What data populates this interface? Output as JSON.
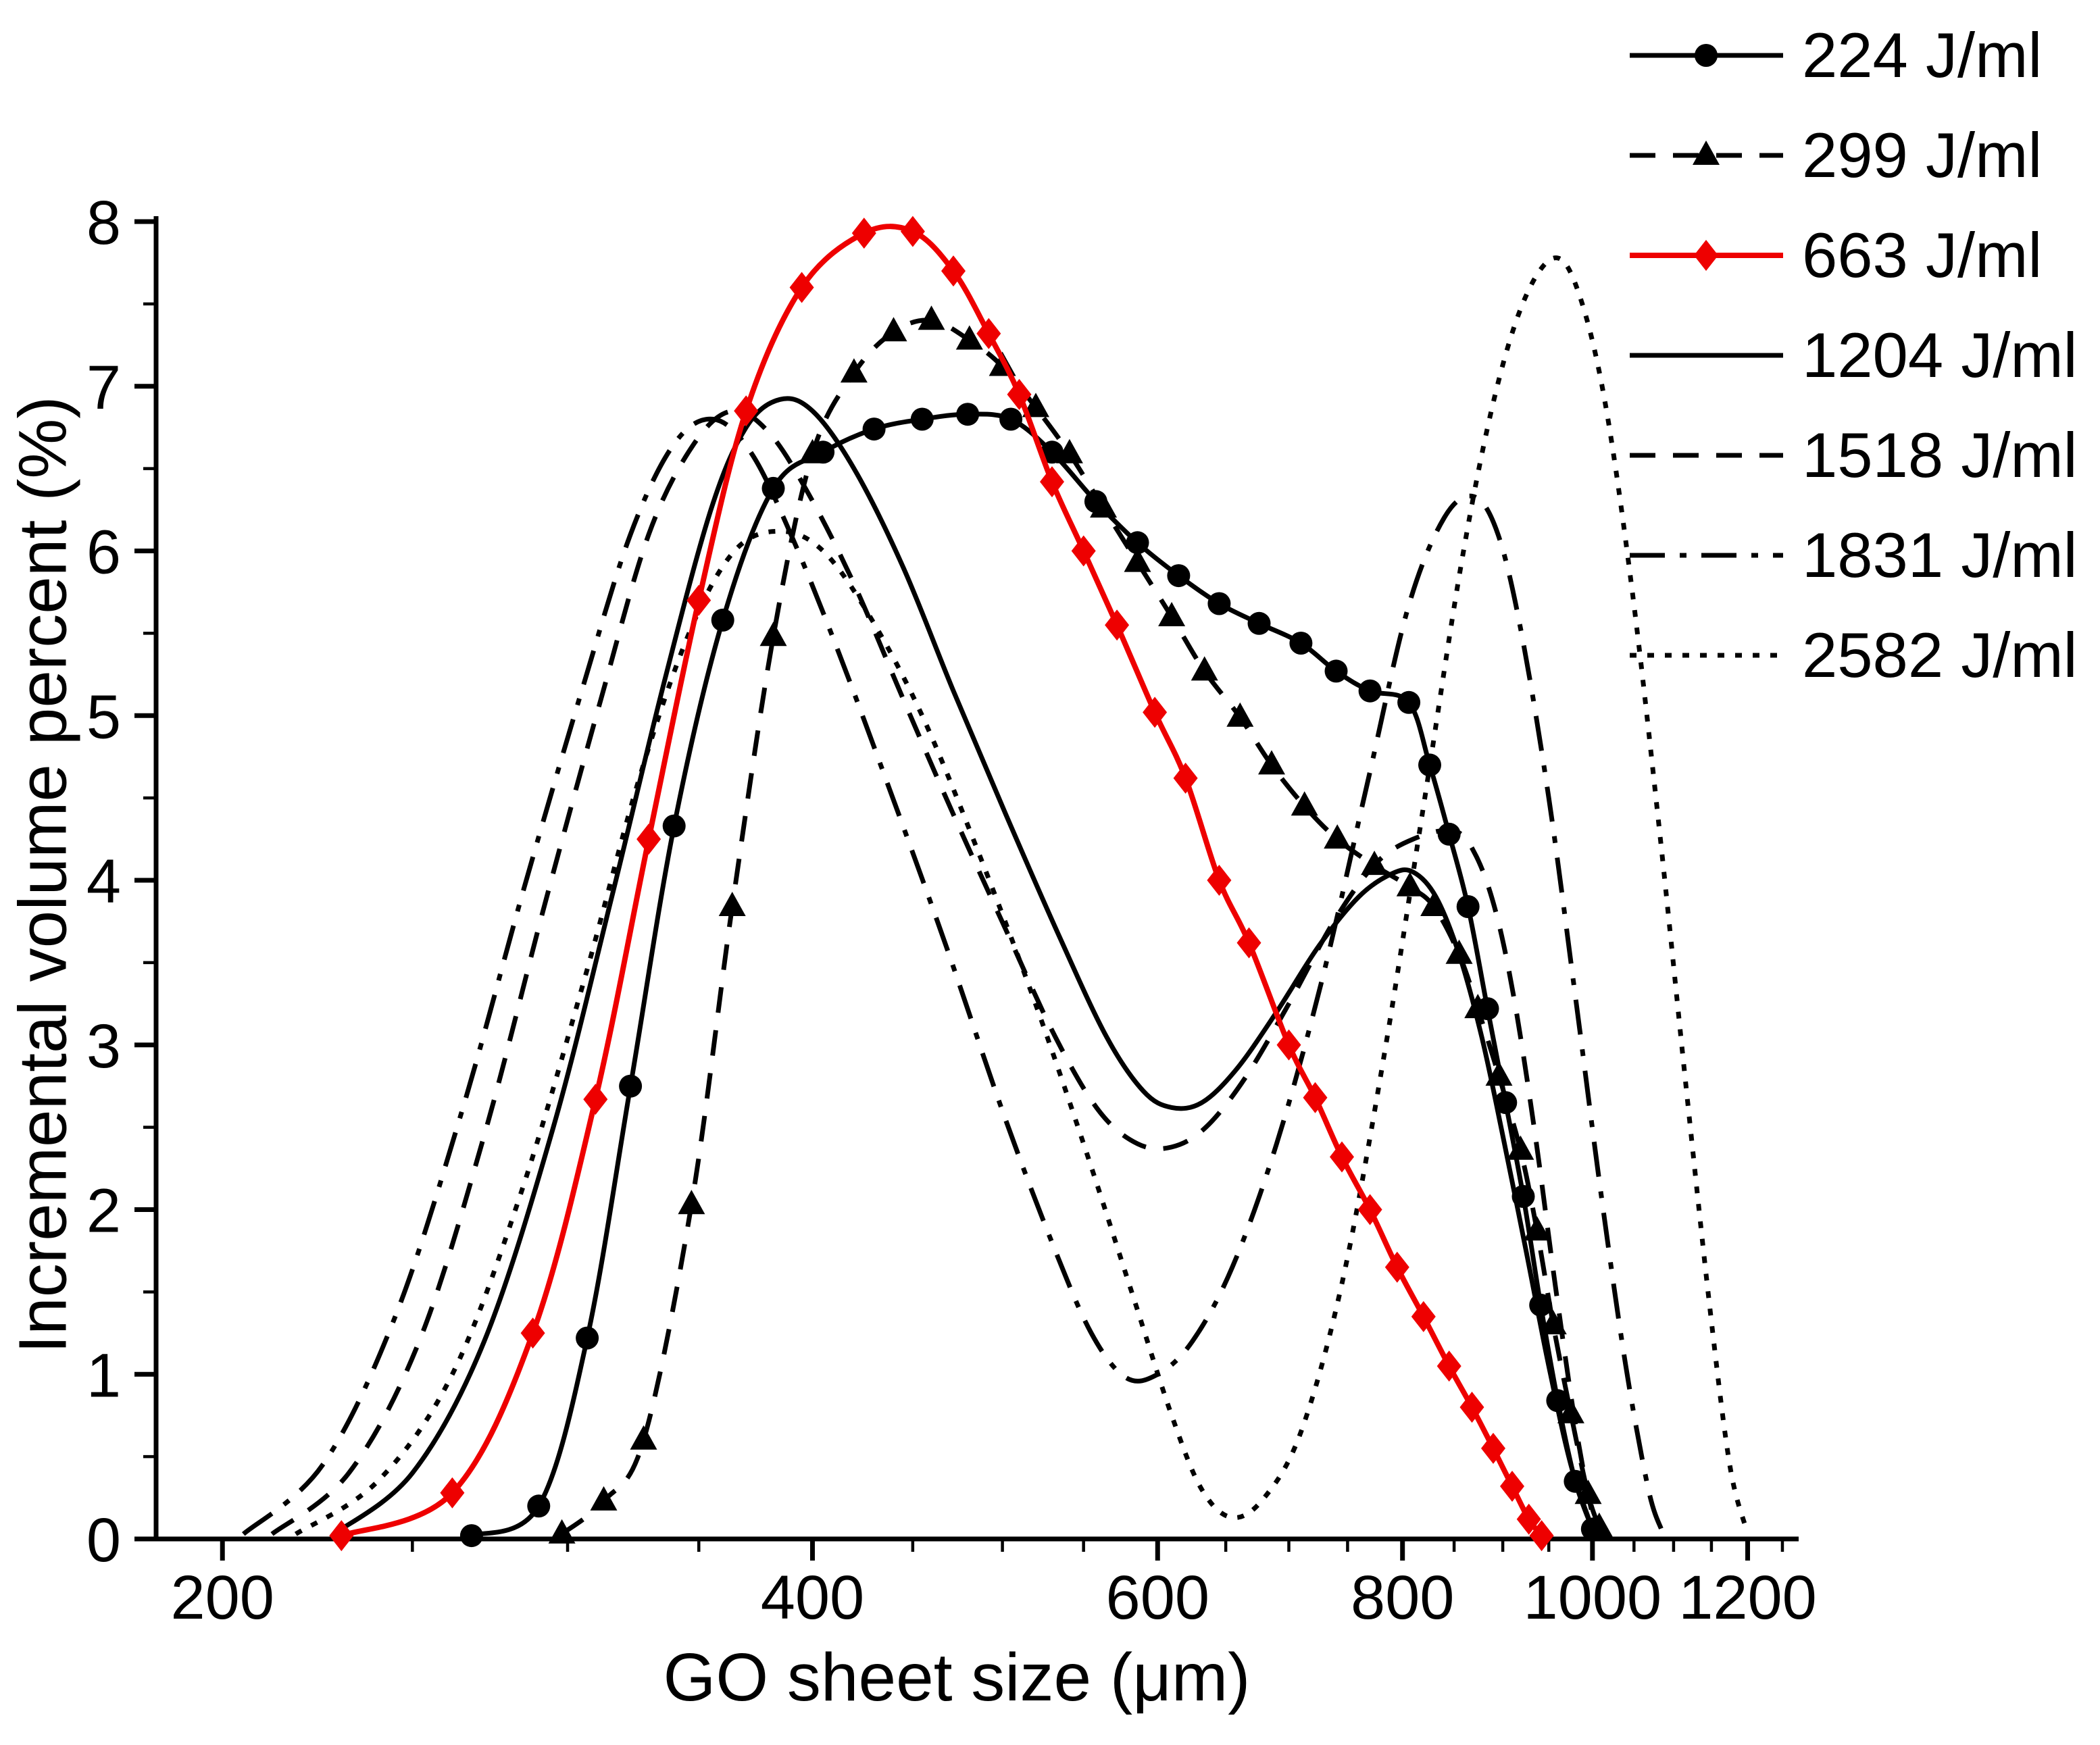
{
  "figure": {
    "background": "#ffffff",
    "accent_red": "#ee0000",
    "axis_color": "#000000"
  },
  "chart_data": {
    "type": "line",
    "title": "",
    "xlabel": "GO sheet size (μm)",
    "ylabel": "Incremental volume percent (%)",
    "x_scale": "log",
    "xlim": [
      185,
      1260
    ],
    "ylim": [
      0,
      8
    ],
    "x_ticks": [
      200,
      400,
      600,
      800,
      1000,
      1200
    ],
    "x_minor_ticks": [
      250,
      300,
      350,
      450,
      500,
      550,
      650,
      700,
      750,
      850,
      900,
      950,
      1050,
      1100,
      1150,
      1250
    ],
    "y_ticks": [
      0,
      1,
      2,
      3,
      4,
      5,
      6,
      7,
      8
    ],
    "y_minor_step": 0.5,
    "grid": false,
    "legend_position": "top-right",
    "series": [
      {
        "label": "224 J/ml",
        "color": "#000000",
        "line_style": "solid",
        "marker": "circle",
        "points": [
          [
            268,
            0.02
          ],
          [
            290,
            0.2
          ],
          [
            307,
            1.22
          ],
          [
            323,
            2.75
          ],
          [
            340,
            4.33
          ],
          [
            360,
            5.58
          ],
          [
            382,
            6.38
          ],
          [
            405,
            6.6
          ],
          [
            430,
            6.74
          ],
          [
            455,
            6.8
          ],
          [
            480,
            6.83
          ],
          [
            505,
            6.8
          ],
          [
            530,
            6.6
          ],
          [
            558,
            6.3
          ],
          [
            586,
            6.05
          ],
          [
            615,
            5.85
          ],
          [
            645,
            5.68
          ],
          [
            676,
            5.56
          ],
          [
            710,
            5.44
          ],
          [
            740,
            5.27
          ],
          [
            770,
            5.15
          ],
          [
            806,
            5.08
          ],
          [
            826,
            4.7
          ],
          [
            845,
            4.28
          ],
          [
            864,
            3.84
          ],
          [
            884,
            3.22
          ],
          [
            903,
            2.65
          ],
          [
            922,
            2.08
          ],
          [
            941,
            1.42
          ],
          [
            960,
            0.84
          ],
          [
            980,
            0.35
          ],
          [
            1000,
            0.06
          ]
        ]
      },
      {
        "label": "299 J/ml",
        "color": "#000000",
        "line_style": "dashed",
        "marker": "triangle",
        "points": [
          [
            298,
            0.03
          ],
          [
            313,
            0.23
          ],
          [
            328,
            0.6
          ],
          [
            347,
            2.03
          ],
          [
            364,
            3.84
          ],
          [
            382,
            5.48
          ],
          [
            400,
            6.59
          ],
          [
            420,
            7.08
          ],
          [
            440,
            7.33
          ],
          [
            460,
            7.4
          ],
          [
            481,
            7.28
          ],
          [
            500,
            7.12
          ],
          [
            520,
            6.87
          ],
          [
            541,
            6.59
          ],
          [
            563,
            6.26
          ],
          [
            586,
            5.93
          ],
          [
            610,
            5.6
          ],
          [
            634,
            5.27
          ],
          [
            661,
            4.99
          ],
          [
            686,
            4.7
          ],
          [
            713,
            4.45
          ],
          [
            741,
            4.25
          ],
          [
            774,
            4.09
          ],
          [
            807,
            3.96
          ],
          [
            830,
            3.84
          ],
          [
            855,
            3.55
          ],
          [
            874,
            3.22
          ],
          [
            896,
            2.81
          ],
          [
            919,
            2.36
          ],
          [
            937,
            1.87
          ],
          [
            955,
            1.3
          ],
          [
            975,
            0.76
          ],
          [
            995,
            0.27
          ],
          [
            1008,
            0.07
          ]
        ]
      },
      {
        "label": "663 J/ml",
        "color": "#ee0000",
        "line_style": "solid",
        "marker": "diamond",
        "points": [
          [
            230,
            0.02
          ],
          [
            262,
            0.28
          ],
          [
            288,
            1.25
          ],
          [
            310,
            2.67
          ],
          [
            330,
            4.25
          ],
          [
            350,
            5.7
          ],
          [
            370,
            6.85
          ],
          [
            395,
            7.6
          ],
          [
            425,
            7.93
          ],
          [
            450,
            7.94
          ],
          [
            472,
            7.7
          ],
          [
            492,
            7.32
          ],
          [
            510,
            6.95
          ],
          [
            530,
            6.42
          ],
          [
            550,
            6.0
          ],
          [
            572,
            5.55
          ],
          [
            598,
            5.02
          ],
          [
            620,
            4.62
          ],
          [
            645,
            4.0
          ],
          [
            668,
            3.62
          ],
          [
            700,
            3.0
          ],
          [
            722,
            2.68
          ],
          [
            745,
            2.32
          ],
          [
            770,
            2.0
          ],
          [
            795,
            1.65
          ],
          [
            820,
            1.35
          ],
          [
            845,
            1.05
          ],
          [
            868,
            0.8
          ],
          [
            890,
            0.55
          ],
          [
            910,
            0.32
          ],
          [
            928,
            0.12
          ],
          [
            942,
            0.02
          ]
        ]
      },
      {
        "label": "1204 J/ml",
        "color": "#000000",
        "line_style": "solid",
        "marker": "none",
        "points": [
          [
            228,
            0.03
          ],
          [
            250,
            0.4
          ],
          [
            272,
            1.2
          ],
          [
            295,
            2.5
          ],
          [
            316,
            3.9
          ],
          [
            336,
            5.2
          ],
          [
            355,
            6.25
          ],
          [
            370,
            6.75
          ],
          [
            385,
            6.92
          ],
          [
            400,
            6.85
          ],
          [
            420,
            6.5
          ],
          [
            445,
            5.9
          ],
          [
            472,
            5.15
          ],
          [
            502,
            4.4
          ],
          [
            535,
            3.65
          ],
          [
            565,
            3.05
          ],
          [
            590,
            2.72
          ],
          [
            610,
            2.62
          ],
          [
            632,
            2.65
          ],
          [
            658,
            2.85
          ],
          [
            690,
            3.2
          ],
          [
            725,
            3.6
          ],
          [
            760,
            3.9
          ],
          [
            790,
            4.04
          ],
          [
            810,
            4.05
          ],
          [
            832,
            3.9
          ],
          [
            855,
            3.55
          ],
          [
            878,
            3.05
          ],
          [
            900,
            2.45
          ],
          [
            925,
            1.75
          ],
          [
            950,
            1.05
          ],
          [
            975,
            0.45
          ],
          [
            1000,
            0.06
          ]
        ]
      },
      {
        "label": "1518 J/ml",
        "color": "#000000",
        "line_style": "dashed",
        "marker": "none",
        "points": [
          [
            212,
            0.03
          ],
          [
            232,
            0.4
          ],
          [
            252,
            1.2
          ],
          [
            272,
            2.45
          ],
          [
            292,
            3.85
          ],
          [
            312,
            5.1
          ],
          [
            330,
            6.1
          ],
          [
            348,
            6.65
          ],
          [
            364,
            6.85
          ],
          [
            380,
            6.72
          ],
          [
            398,
            6.35
          ],
          [
            420,
            5.8
          ],
          [
            445,
            5.1
          ],
          [
            472,
            4.4
          ],
          [
            502,
            3.7
          ],
          [
            532,
            3.05
          ],
          [
            560,
            2.6
          ],
          [
            586,
            2.4
          ],
          [
            610,
            2.38
          ],
          [
            635,
            2.5
          ],
          [
            665,
            2.8
          ],
          [
            700,
            3.25
          ],
          [
            738,
            3.75
          ],
          [
            775,
            4.1
          ],
          [
            810,
            4.25
          ],
          [
            850,
            4.3
          ],
          [
            872,
            4.15
          ],
          [
            893,
            3.8
          ],
          [
            913,
            3.25
          ],
          [
            935,
            2.45
          ],
          [
            957,
            1.55
          ],
          [
            980,
            0.7
          ],
          [
            1000,
            0.15
          ],
          [
            1010,
            0.04
          ]
        ]
      },
      {
        "label": "1831 J/ml",
        "color": "#000000",
        "line_style": "dashdot",
        "marker": "none",
        "points": [
          [
            205,
            0.03
          ],
          [
            225,
            0.45
          ],
          [
            245,
            1.35
          ],
          [
            265,
            2.6
          ],
          [
            285,
            3.95
          ],
          [
            305,
            5.15
          ],
          [
            323,
            6.1
          ],
          [
            340,
            6.65
          ],
          [
            356,
            6.8
          ],
          [
            372,
            6.6
          ],
          [
            390,
            6.1
          ],
          [
            412,
            5.4
          ],
          [
            438,
            4.55
          ],
          [
            468,
            3.6
          ],
          [
            500,
            2.6
          ],
          [
            530,
            1.8
          ],
          [
            555,
            1.25
          ],
          [
            578,
            0.98
          ],
          [
            600,
            1.0
          ],
          [
            625,
            1.2
          ],
          [
            655,
            1.65
          ],
          [
            690,
            2.4
          ],
          [
            728,
            3.4
          ],
          [
            768,
            4.6
          ],
          [
            805,
            5.65
          ],
          [
            840,
            6.2
          ],
          [
            870,
            6.33
          ],
          [
            895,
            6.1
          ],
          [
            920,
            5.5
          ],
          [
            950,
            4.5
          ],
          [
            980,
            3.3
          ],
          [
            1010,
            2.1
          ],
          [
            1040,
            1.05
          ],
          [
            1068,
            0.3
          ],
          [
            1085,
            0.05
          ]
        ]
      },
      {
        "label": "2582 J/ml",
        "color": "#000000",
        "line_style": "dotted",
        "marker": "none",
        "points": [
          [
            218,
            0.03
          ],
          [
            240,
            0.35
          ],
          [
            262,
            1.0
          ],
          [
            284,
            2.1
          ],
          [
            306,
            3.4
          ],
          [
            326,
            4.6
          ],
          [
            346,
            5.5
          ],
          [
            365,
            6.0
          ],
          [
            385,
            6.12
          ],
          [
            405,
            6.0
          ],
          [
            428,
            5.6
          ],
          [
            455,
            5.0
          ],
          [
            485,
            4.2
          ],
          [
            518,
            3.3
          ],
          [
            550,
            2.4
          ],
          [
            582,
            1.5
          ],
          [
            610,
            0.75
          ],
          [
            632,
            0.3
          ],
          [
            655,
            0.13
          ],
          [
            680,
            0.25
          ],
          [
            710,
            0.65
          ],
          [
            745,
            1.55
          ],
          [
            782,
            2.9
          ],
          [
            820,
            4.45
          ],
          [
            858,
            5.95
          ],
          [
            892,
            6.95
          ],
          [
            925,
            7.55
          ],
          [
            958,
            7.78
          ],
          [
            985,
            7.55
          ],
          [
            1015,
            6.9
          ],
          [
            1048,
            5.75
          ],
          [
            1082,
            4.3
          ],
          [
            1115,
            2.8
          ],
          [
            1148,
            1.4
          ],
          [
            1175,
            0.45
          ],
          [
            1198,
            0.06
          ]
        ]
      }
    ]
  }
}
